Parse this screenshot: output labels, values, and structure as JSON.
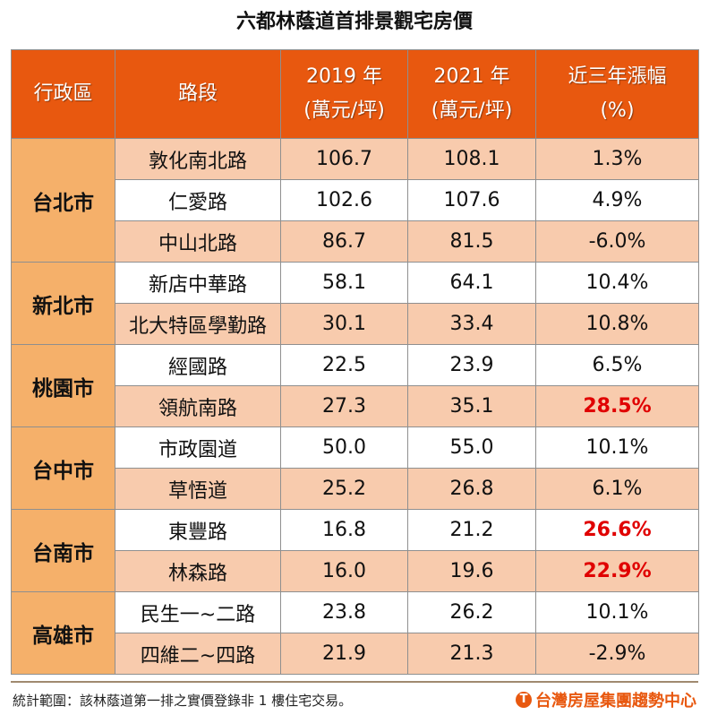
{
  "title": "六都林蔭道首排景觀宅房價",
  "headers": {
    "district": "行政區",
    "road": "路段",
    "y2019": "2019 年",
    "y2019_unit": "(萬元/坪)",
    "y2021": "2021 年",
    "y2021_unit": "(萬元/坪)",
    "change": "近三年漲幅",
    "change_unit": "(%)"
  },
  "groups": [
    {
      "district": "台北市",
      "rows": [
        {
          "road": "敦化南北路",
          "p2019": "106.7",
          "p2021": "108.1",
          "change": "1.3%",
          "highlight": false
        },
        {
          "road": "仁愛路",
          "p2019": "102.6",
          "p2021": "107.6",
          "change": "4.9%",
          "highlight": false
        },
        {
          "road": "中山北路",
          "p2019": "86.7",
          "p2021": "81.5",
          "change": "-6.0%",
          "highlight": false
        }
      ]
    },
    {
      "district": "新北市",
      "rows": [
        {
          "road": "新店中華路",
          "p2019": "58.1",
          "p2021": "64.1",
          "change": "10.4%",
          "highlight": false
        },
        {
          "road": "北大特區學勤路",
          "p2019": "30.1",
          "p2021": "33.4",
          "change": "10.8%",
          "highlight": false
        }
      ]
    },
    {
      "district": "桃園市",
      "rows": [
        {
          "road": "經國路",
          "p2019": "22.5",
          "p2021": "23.9",
          "change": "6.5%",
          "highlight": false
        },
        {
          "road": "領航南路",
          "p2019": "27.3",
          "p2021": "35.1",
          "change": "28.5%",
          "highlight": true
        }
      ]
    },
    {
      "district": "台中市",
      "rows": [
        {
          "road": "市政園道",
          "p2019": "50.0",
          "p2021": "55.0",
          "change": "10.1%",
          "highlight": false
        },
        {
          "road": "草悟道",
          "p2019": "25.2",
          "p2021": "26.8",
          "change": "6.1%",
          "highlight": false
        }
      ]
    },
    {
      "district": "台南市",
      "rows": [
        {
          "road": "東豐路",
          "p2019": "16.8",
          "p2021": "21.2",
          "change": "26.6%",
          "highlight": true
        },
        {
          "road": "林森路",
          "p2019": "16.0",
          "p2021": "19.6",
          "change": "22.9%",
          "highlight": true
        }
      ]
    },
    {
      "district": "高雄市",
      "rows": [
        {
          "road": "民生一~二路",
          "p2019": "23.8",
          "p2021": "26.2",
          "change": "10.1%",
          "highlight": false
        },
        {
          "road": "四維二~四路",
          "p2019": "21.9",
          "p2021": "21.3",
          "change": "-2.9%",
          "highlight": false
        }
      ]
    }
  ],
  "footer": {
    "note": "統計範圍：該林蔭道第一排之實價登錄非 1 樓住宅交易。",
    "logo": "台灣房屋集團趨勢中心"
  },
  "colors": {
    "header": "#E8580F",
    "district": "#F5B06A",
    "shade": "#F8CBAD",
    "highlight_text": "#E00000"
  }
}
